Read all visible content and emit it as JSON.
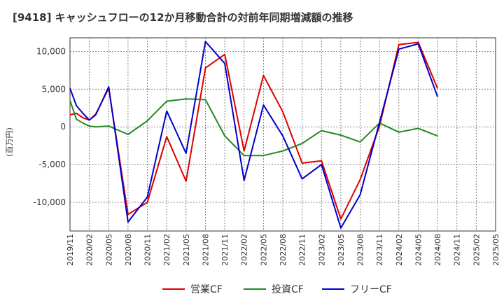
{
  "chart_data": {
    "type": "line",
    "title": "[9418]  キャッシュフローの12か月移動合計の対前年同期増減額の推移",
    "ylabel": "(百万円)",
    "xlabel": "",
    "ylim": [
      -13800,
      11800
    ],
    "yticks": [
      10000,
      5000,
      0,
      -5000,
      -10000
    ],
    "ytick_labels": [
      "10,000",
      "5,000",
      "0",
      "-5,000",
      "-10,000"
    ],
    "xtick_labels": [
      "2019/11",
      "2020/02",
      "2020/05",
      "2020/08",
      "2020/11",
      "2021/02",
      "2021/05",
      "2021/08",
      "2021/11",
      "2022/02",
      "2022/05",
      "2022/08",
      "2022/11",
      "2023/02",
      "2023/05",
      "2023/08",
      "2023/11",
      "2024/02",
      "2024/05",
      "2024/08",
      "2024/11",
      "2025/02",
      "2025/05"
    ],
    "x": [
      "2019/11",
      "2019/12",
      "2020/01",
      "2020/02",
      "2020/03",
      "2020/05",
      "2020/08",
      "2020/11",
      "2021/02",
      "2021/05",
      "2021/08",
      "2021/11",
      "2022/02",
      "2022/05",
      "2022/08",
      "2022/11",
      "2023/02",
      "2023/05",
      "2023/08",
      "2023/11",
      "2024/02",
      "2024/05",
      "2024/08"
    ],
    "grid": true,
    "legend_position": "bottom",
    "series": [
      {
        "name": "営業CF",
        "color": "#dd0000",
        "values": [
          1600,
          1800,
          1200,
          900,
          1700,
          5100,
          -11600,
          -10000,
          -1300,
          -7200,
          7800,
          9600,
          -3200,
          6800,
          2000,
          -4800,
          -4500,
          -12200,
          -7000,
          100,
          10900,
          11200,
          5100
        ]
      },
      {
        "name": "投資CF",
        "color": "#228822",
        "values": [
          3500,
          1000,
          500,
          100,
          0,
          100,
          -1000,
          800,
          3400,
          3700,
          3600,
          -1200,
          -3800,
          -3800,
          -3200,
          -2200,
          -500,
          -1100,
          -2000,
          500,
          -700,
          -200,
          -1200
        ]
      },
      {
        "name": "フリーCF",
        "color": "#0000cc",
        "values": [
          5100,
          2800,
          1800,
          900,
          1600,
          5300,
          -12600,
          -9300,
          2100,
          -3500,
          11300,
          8400,
          -7100,
          2900,
          -1200,
          -6900,
          -5000,
          -13400,
          -9000,
          600,
          10300,
          11000,
          4000
        ]
      }
    ]
  }
}
